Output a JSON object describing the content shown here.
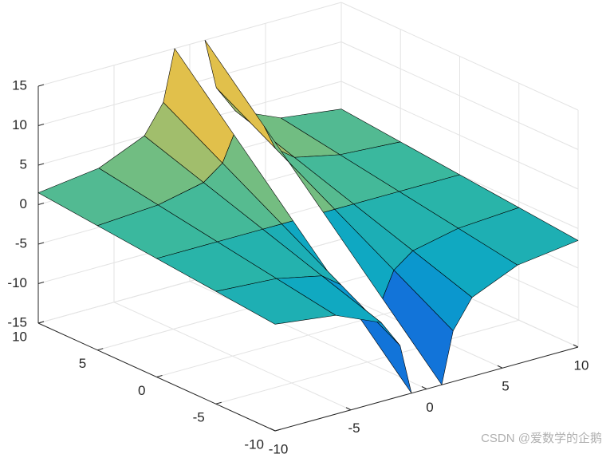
{
  "chart_data": {
    "type": "surface",
    "xlim": [
      -10,
      10
    ],
    "ylim": [
      -10,
      10
    ],
    "zlim": [
      -15,
      15
    ],
    "xticks": [
      -10,
      -5,
      0,
      5,
      10
    ],
    "yticks": [
      -10,
      -5,
      0,
      5,
      10
    ],
    "zticks": [
      -15,
      -10,
      -5,
      0,
      5,
      10,
      15
    ],
    "grid": true,
    "colormap": [
      "#352a87",
      "#0f5cdd",
      "#1481d6",
      "#06a4ca",
      "#2eb7a4",
      "#87bf77",
      "#d1bb59",
      "#fec832",
      "#f9fb0e"
    ],
    "edge_color": "#000000",
    "surfaces": [
      {
        "x": [
          -10,
          -6,
          -3,
          -1.75,
          -1
        ],
        "y": [
          -10,
          -5,
          0,
          5,
          10
        ],
        "z": [
          [
            -1.5,
            -0.75,
            0,
            0.75,
            1.5
          ],
          [
            -2.5,
            -1.25,
            0,
            1.25,
            2.5
          ],
          [
            -5,
            -2.5,
            0,
            2.5,
            5
          ],
          [
            -8.57,
            -4.29,
            0,
            4.29,
            8.57
          ],
          [
            -15,
            -7.5,
            0,
            7.5,
            15
          ]
        ]
      },
      {
        "x": [
          1,
          1.75,
          3,
          6,
          10
        ],
        "y": [
          -10,
          -5,
          0,
          5,
          10
        ],
        "z": [
          [
            -15,
            -7.5,
            0,
            7.5,
            15
          ],
          [
            -8.57,
            -4.29,
            0,
            4.29,
            8.57
          ],
          [
            -5,
            -2.5,
            0,
            2.5,
            5
          ],
          [
            -2.5,
            -1.25,
            0,
            1.25,
            2.5
          ],
          [
            -1.5,
            -0.75,
            0,
            0.75,
            1.5
          ]
        ]
      }
    ],
    "watermark": "CSDN @爱数学的企鹅"
  }
}
